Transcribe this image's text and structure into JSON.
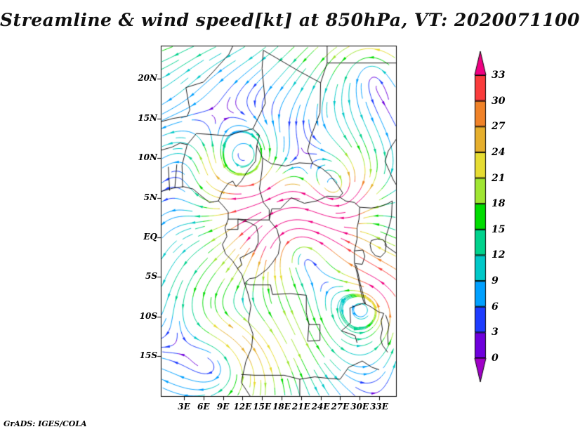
{
  "chart_data": {
    "type": "streamline",
    "title": "Streamline & wind speed[kt] at 850hPa, VT: 2020071100",
    "field": "wind speed",
    "units": "kt",
    "level": "850hPa",
    "valid_time": "2020071100",
    "x_ticks": [
      "3E",
      "6E",
      "9E",
      "12E",
      "15E",
      "18E",
      "21E",
      "24E",
      "27E",
      "30E",
      "33E"
    ],
    "y_ticks": [
      "20N",
      "15N",
      "10N",
      "5N",
      "EQ",
      "5S",
      "10S",
      "15S"
    ],
    "lon_domain": [
      0,
      36
    ],
    "lat_domain": [
      -20,
      24
    ],
    "legend_position": "right",
    "colorbar": {
      "orientation": "vertical",
      "levels": [
        0,
        3,
        6,
        9,
        12,
        15,
        18,
        21,
        24,
        27,
        30,
        33
      ],
      "colors": [
        "#a000c8",
        "#6e00dc",
        "#1e3cff",
        "#00a0ff",
        "#00c8c8",
        "#00d28c",
        "#00dc00",
        "#a0e632",
        "#e6dc32",
        "#e6af2d",
        "#f08228",
        "#fa3c3c",
        "#f00082"
      ]
    },
    "annotation": "GrADS: IGES/COLA"
  }
}
